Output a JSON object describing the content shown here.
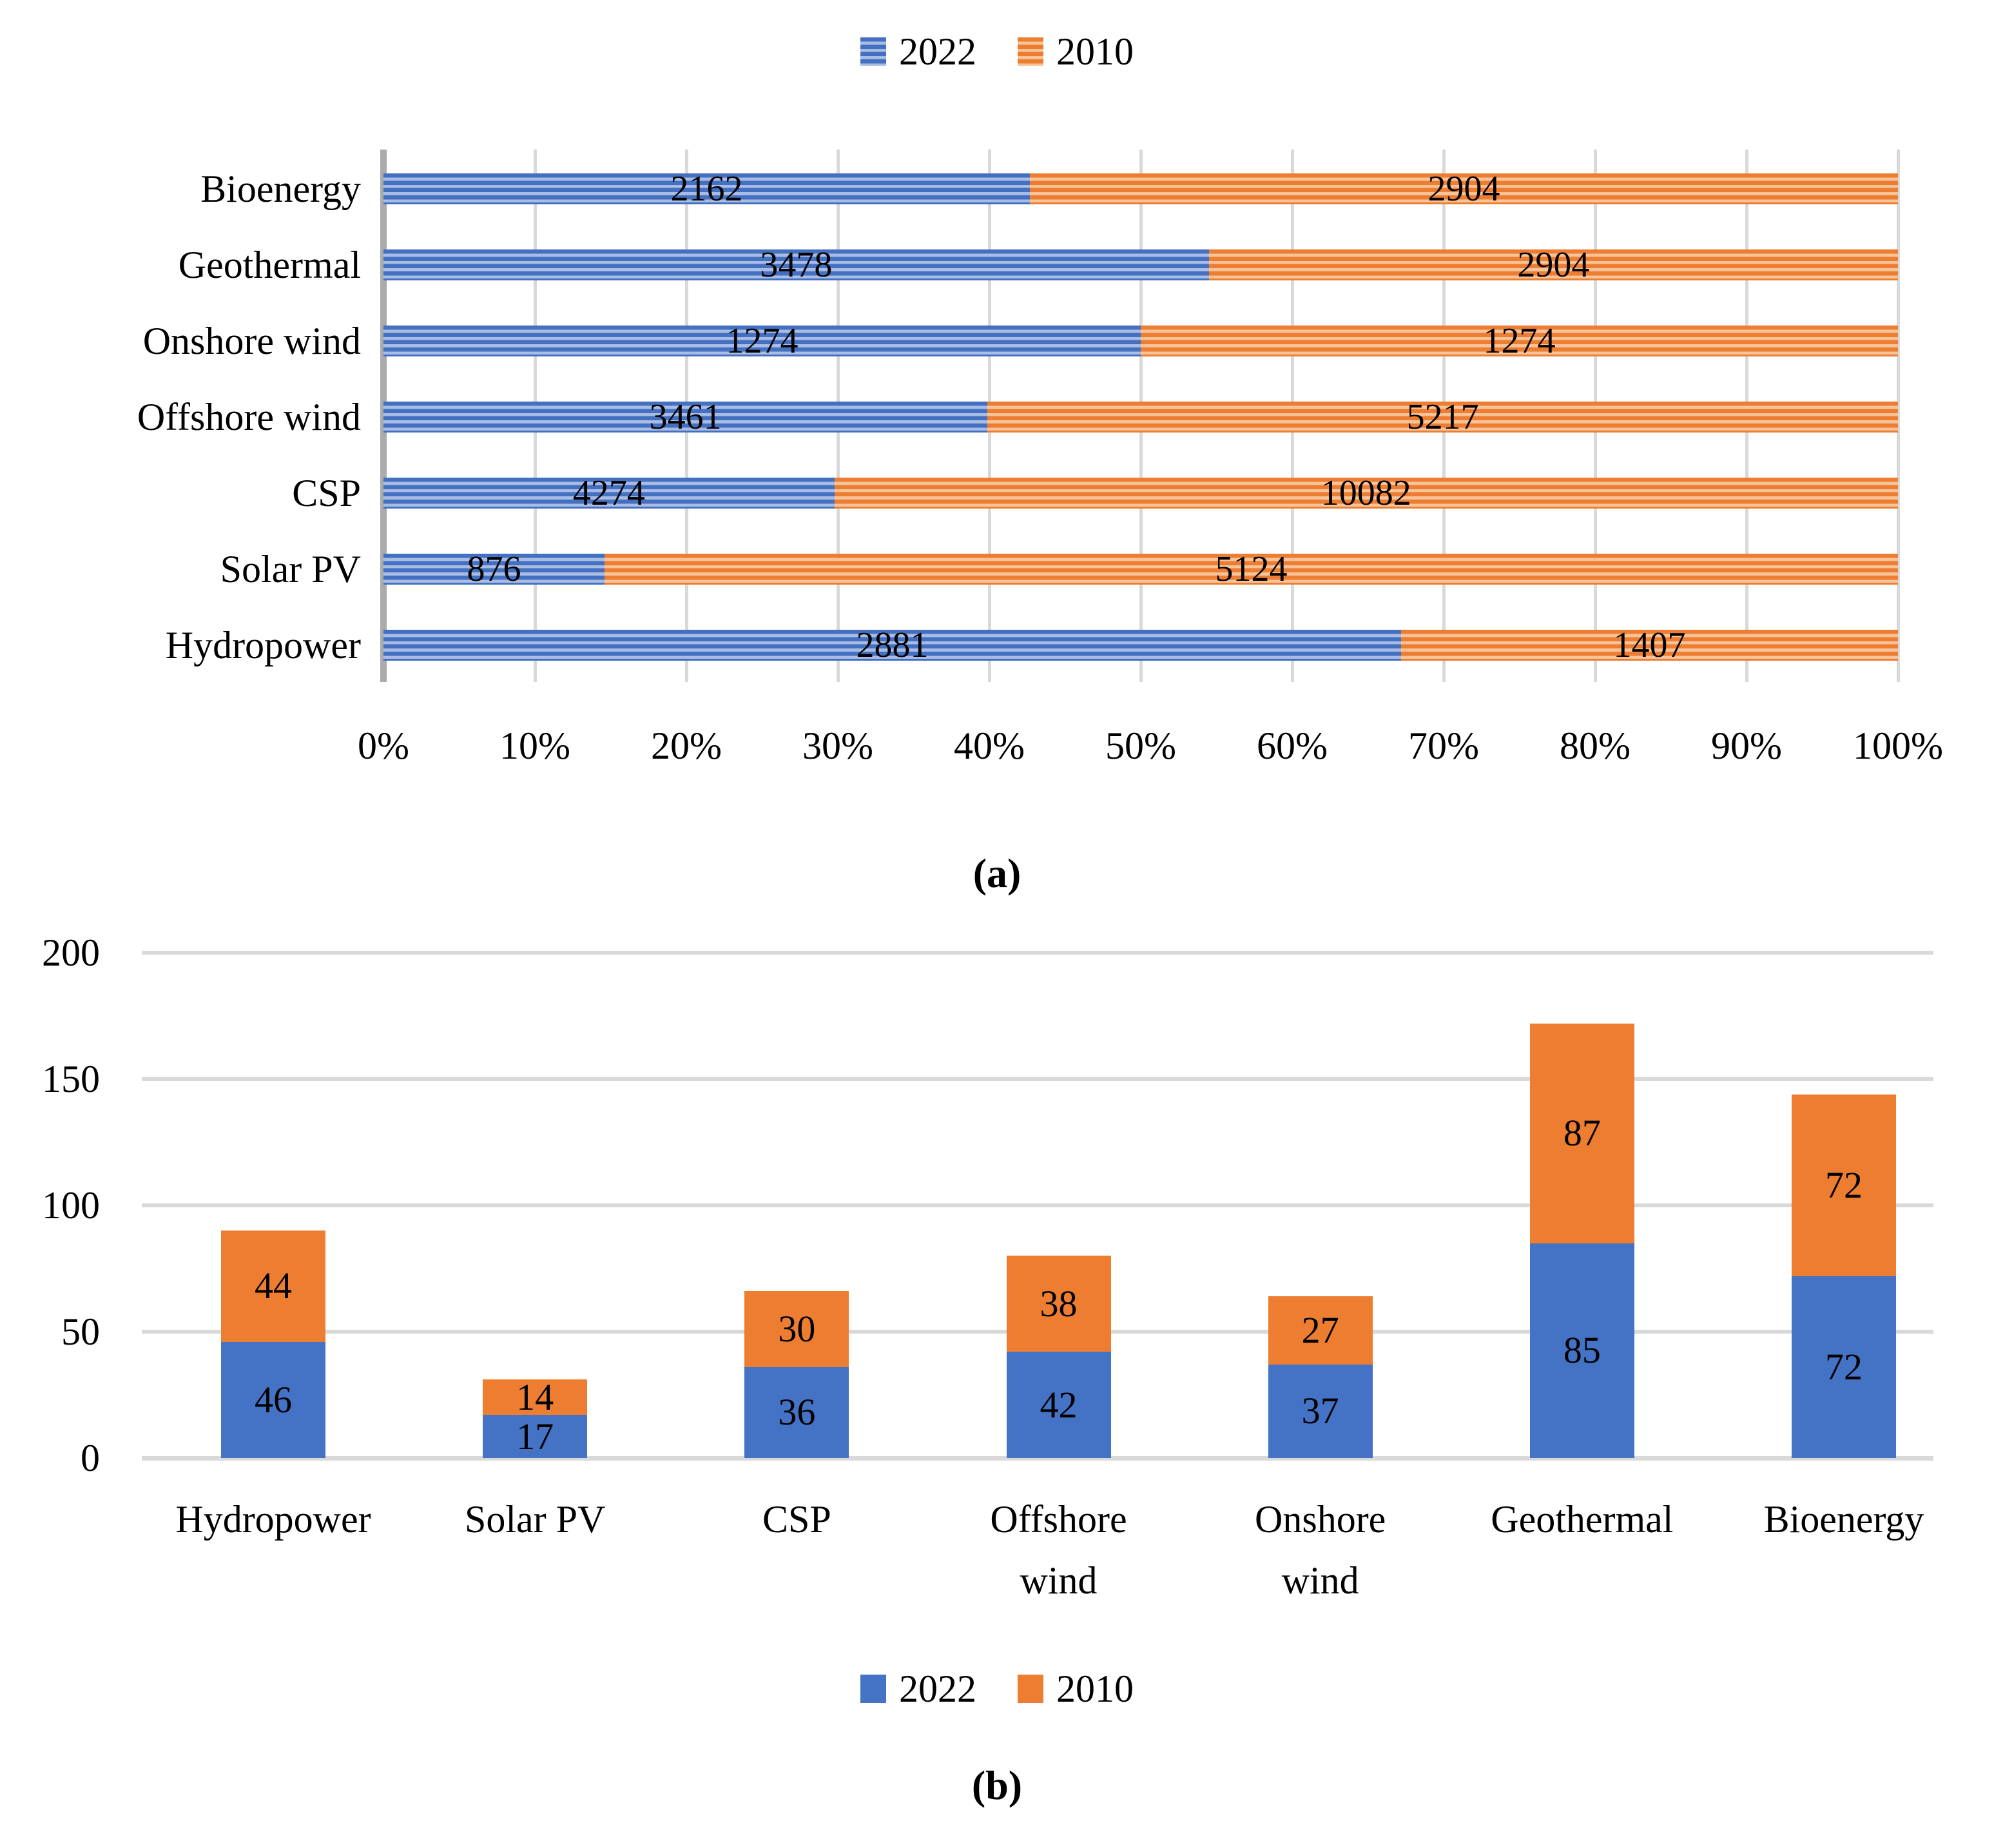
{
  "captions": {
    "a": "(a)",
    "b": "(b)"
  },
  "colors": {
    "series_2022": "#4472c4",
    "series_2010": "#ed7d31",
    "series_2022_stripe_light": "#a9bce4",
    "series_2010_stripe_light": "#f7c399",
    "gridline": "#d9d9d9",
    "axis_line": "#ababab"
  },
  "chart_data": [
    {
      "type": "bar",
      "subtype": "horizontal-stacked-100percent",
      "title": "",
      "xlabel": "",
      "ylabel": "",
      "categories": [
        "Bioenergy",
        "Geothermal",
        "Onshore wind",
        "Offshore wind",
        "CSP",
        "Solar PV",
        "Hydropower"
      ],
      "series": [
        {
          "name": "2022",
          "color": "#4472c4",
          "pattern": "horizontal-stripes",
          "values": [
            2162,
            3478,
            1274,
            3461,
            4274,
            876,
            2881
          ]
        },
        {
          "name": "2010",
          "color": "#ed7d31",
          "pattern": "horizontal-stripes",
          "values": [
            2904,
            2904,
            1274,
            5217,
            10082,
            5124,
            1407
          ]
        }
      ],
      "x_ticks": [
        "0%",
        "10%",
        "20%",
        "30%",
        "40%",
        "50%",
        "60%",
        "70%",
        "80%",
        "90%",
        "100%"
      ],
      "xlim": [
        0,
        100
      ],
      "grid": "vertical",
      "legend_position": "top",
      "data_labels": "inside-center"
    },
    {
      "type": "bar",
      "subtype": "vertical-stacked",
      "title": "",
      "xlabel": "",
      "ylabel": "",
      "categories": [
        "Hydropower",
        "Solar PV",
        "CSP",
        "Offshore\nwind",
        "Onshore\nwind",
        "Geothermal",
        "Bioenergy"
      ],
      "series": [
        {
          "name": "2022",
          "color": "#4472c4",
          "pattern": "solid",
          "values": [
            46,
            17,
            36,
            42,
            37,
            85,
            72
          ]
        },
        {
          "name": "2010",
          "color": "#ed7d31",
          "pattern": "solid",
          "values": [
            44,
            14,
            30,
            38,
            27,
            87,
            72
          ]
        }
      ],
      "y_ticks": [
        0,
        50,
        100,
        150,
        200
      ],
      "ylim": [
        0,
        200
      ],
      "grid": "horizontal",
      "legend_position": "bottom",
      "data_labels": "inside-center"
    }
  ]
}
